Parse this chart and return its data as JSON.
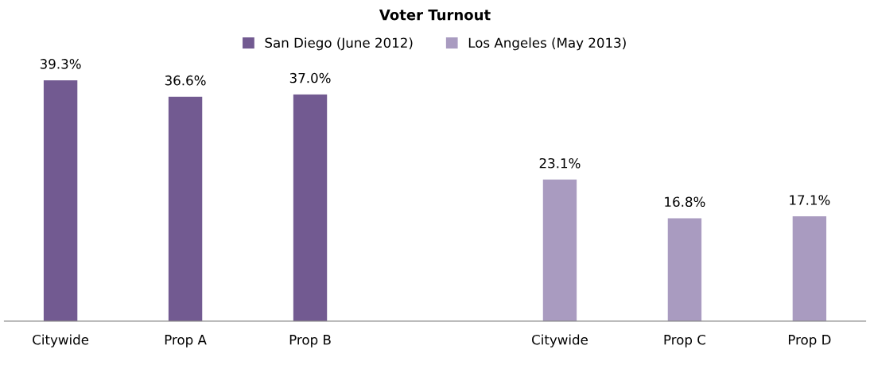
{
  "chart_data": {
    "type": "bar",
    "title": "Voter Turnout",
    "categories": [
      "Citywide",
      "Prop A",
      "Prop B",
      null,
      "Citywide",
      "Prop C",
      "Prop D"
    ],
    "series": [
      {
        "name": "San Diego (June 2012)",
        "color": "#725a91",
        "values": [
          39.3,
          36.6,
          37.0,
          null,
          null,
          null,
          null
        ],
        "value_labels": [
          "39.3%",
          "36.6%",
          "37.0%",
          null,
          null,
          null,
          null
        ]
      },
      {
        "name": "Los Angeles (May 2013)",
        "color": "#a99bc0",
        "values": [
          null,
          null,
          null,
          null,
          23.1,
          16.8,
          17.1
        ],
        "value_labels": [
          null,
          null,
          null,
          null,
          "23.1%",
          "16.8%",
          "17.1%"
        ]
      }
    ],
    "legend": "top",
    "grid": false
  }
}
